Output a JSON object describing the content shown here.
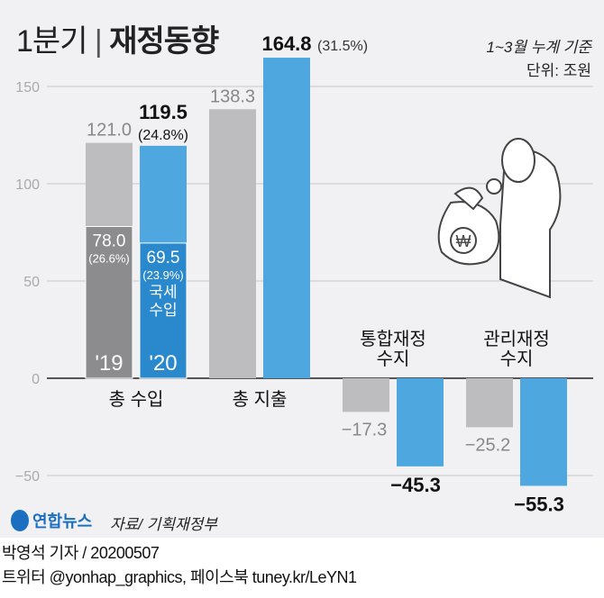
{
  "header": {
    "title_light": "1분기",
    "title_bold": "재정동향",
    "basis": "1~3월 누계 기준",
    "unit": "단위: 조원"
  },
  "chart_data": {
    "type": "bar",
    "title": "1분기 재정동향",
    "ylim": [
      -60,
      170
    ],
    "yticks": [
      -50,
      0,
      50,
      100,
      150
    ],
    "grid": true,
    "categories": [
      "총 수입",
      "총 지출",
      "통합재정 수지",
      "관리재정 수지"
    ],
    "series": [
      {
        "name": "'19",
        "values": [
          121.0,
          138.3,
          -17.3,
          -25.2
        ],
        "labels": [
          "121.0",
          "138.3",
          "−17.3",
          "−25.2"
        ],
        "color": "#bdbdc0"
      },
      {
        "name": "'20",
        "values": [
          119.5,
          164.8,
          -45.3,
          -55.3
        ],
        "labels": [
          "119.5",
          "164.8",
          "−45.3",
          "−55.3"
        ],
        "color": "#4ea7de"
      }
    ],
    "annotations": {
      "revenue_2020_pct": "(24.8%)",
      "expenditure_2020_pct": "(31.5%)",
      "tax_2019": "78.0",
      "tax_2019_pct": "(26.6%)",
      "tax_2020": "69.5",
      "tax_2020_pct": "(23.9%)",
      "tax_label_1": "국세",
      "tax_label_2": "수입",
      "tax_values": [
        78.0,
        69.5
      ],
      "tax_colors": [
        "#8c8c8f",
        "#2a88cc"
      ]
    },
    "cat_label_lines": [
      [
        "총 수입"
      ],
      [
        "총 지출"
      ],
      [
        "통합재정",
        "수지"
      ],
      [
        "관리재정",
        "수지"
      ]
    ]
  },
  "footer": {
    "logo": "연합뉴스",
    "source": "자료/ 기획재정부",
    "byline": "박영석 기자 /  20200507",
    "social": "트위터 @yonhap_graphics, 페이스북 tuney.kr/LeYN1"
  }
}
